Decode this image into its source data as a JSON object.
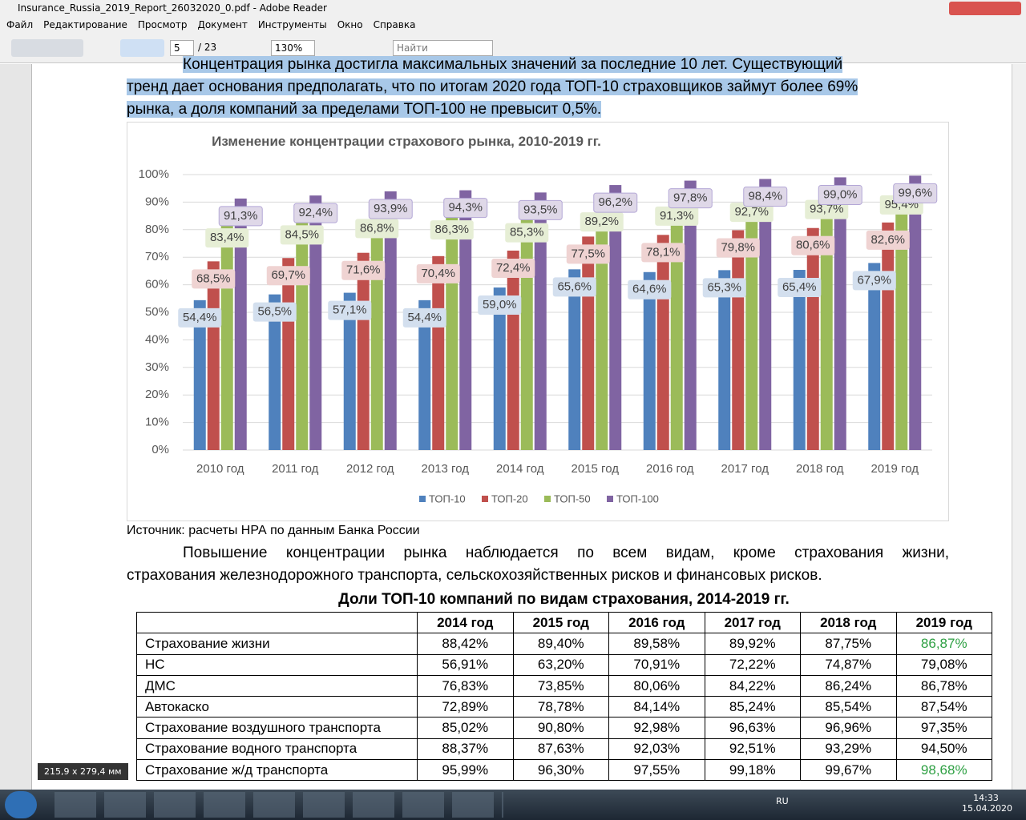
{
  "window": {
    "title": "Insurance_Russia_2019_Report_26032020_0.pdf - Adobe Reader"
  },
  "menu": [
    "Файл",
    "Редактирование",
    "Просмотр",
    "Документ",
    "Инструменты",
    "Окно",
    "Справка"
  ],
  "toolbar": {
    "page": "5",
    "pages": "/ 23",
    "zoom": "130%",
    "search": "Найти"
  },
  "document": {
    "lines": [
      "Концентрация рынка достигла максимальных значений за последние 10 лет. Существующий",
      "тренд дает основания предполагать, что по итогам 2020 года ТОП-10 страховщиков займут более 69%",
      "рынка, а доля компаний за пределами ТОП-100 не превысит 0,5%."
    ],
    "source": "Источник: расчеты НРА по данным Банка России",
    "paragraph": [
      "Повышение концентрации рынка наблюдается по всем видам, кроме страхования жизни,",
      "страхования железнодорожного транспорта, сельскохозяйственных рисков и финансовых рисков."
    ]
  },
  "chart_data": {
    "type": "bar",
    "title": "Изменение концентрации  страхового рынка, 2010-2019 гг.",
    "categories": [
      "2010 год",
      "2011 год",
      "2012 год",
      "2013 год",
      "2014 год",
      "2015 год",
      "2016 год",
      "2017 год",
      "2018 год",
      "2019 год"
    ],
    "series": [
      {
        "name": "ТОП-10",
        "color": "#4f81bd",
        "values": [
          54.4,
          56.5,
          57.1,
          54.4,
          59.0,
          65.6,
          64.6,
          65.3,
          65.4,
          67.9
        ],
        "value_labels": [
          "54,4%",
          "56,5%",
          "57,1%",
          "54,4%",
          "59,0%",
          "65,6%",
          "64,6%",
          "65,3%",
          "65,4%",
          "67,9%"
        ]
      },
      {
        "name": "ТОП-20",
        "color": "#c0504d",
        "values": [
          68.5,
          69.7,
          71.6,
          70.4,
          72.4,
          77.5,
          78.1,
          79.8,
          80.6,
          82.6
        ],
        "value_labels": [
          "68,5%",
          "69,7%",
          "71,6%",
          "70,4%",
          "72,4%",
          "77,5%",
          "78,1%",
          "79,8%",
          "80,6%",
          "82,6%"
        ]
      },
      {
        "name": "ТОП-50",
        "color": "#9bbb59",
        "values": [
          83.4,
          84.5,
          86.8,
          86.3,
          85.3,
          89.2,
          91.3,
          92.7,
          93.7,
          95.4
        ],
        "value_labels": [
          "83,4%",
          "84,5%",
          "86,8%",
          "86,3%",
          "85,3%",
          "89,2%",
          "91,3%",
          "92,7%",
          "93,7%",
          "95,4%"
        ]
      },
      {
        "name": "ТОП-100",
        "color": "#8064a2",
        "values": [
          91.3,
          92.4,
          93.9,
          94.3,
          93.5,
          96.2,
          97.8,
          98.4,
          99.0,
          99.6
        ],
        "value_labels": [
          "91,3%",
          "92,4%",
          "93,9%",
          "94,3%",
          "93,5%",
          "96,2%",
          "97,8%",
          "98,4%",
          "99,0%",
          "99,6%"
        ]
      }
    ],
    "ylim": [
      0,
      100
    ],
    "yticks": [
      {
        "value": 0,
        "label": "0%"
      },
      {
        "value": 10,
        "label": "10%"
      },
      {
        "value": 20,
        "label": "20%"
      },
      {
        "value": 30,
        "label": "30%"
      },
      {
        "value": 40,
        "label": "40%"
      },
      {
        "value": 50,
        "label": "50%"
      },
      {
        "value": 60,
        "label": "60%"
      },
      {
        "value": 70,
        "label": "70%"
      },
      {
        "value": 80,
        "label": "80%"
      },
      {
        "value": 90,
        "label": "90%"
      },
      {
        "value": 100,
        "label": "100%"
      }
    ],
    "grid": true,
    "legend": "bottom"
  },
  "table": {
    "title": "Доли ТОП-10 компаний по видам страхования, 2014-2019 гг.",
    "columns": [
      "2014 год",
      "2015 год",
      "2016 год",
      "2017 год",
      "2018 год",
      "2019 год"
    ],
    "rows": [
      [
        "Страхование жизни",
        "88,42%",
        "89,40%",
        "89,58%",
        "89,92%",
        "87,75%",
        "86,87%"
      ],
      [
        "НС",
        "56,91%",
        "63,20%",
        "70,91%",
        "72,22%",
        "74,87%",
        "79,08%"
      ],
      [
        "ДМС",
        "76,83%",
        "73,85%",
        "80,06%",
        "84,22%",
        "86,24%",
        "86,78%"
      ],
      [
        "Автокаско",
        "72,89%",
        "78,78%",
        "84,14%",
        "85,24%",
        "85,54%",
        "87,54%"
      ],
      [
        "Страхование воздушного транспорта",
        "85,02%",
        "90,80%",
        "92,98%",
        "96,63%",
        "96,96%",
        "97,35%"
      ],
      [
        "Страхование водного транспорта",
        "88,37%",
        "87,63%",
        "92,03%",
        "92,51%",
        "93,29%",
        "94,50%"
      ],
      [
        "Страхование ж/д транспорта",
        "95,99%",
        "96,30%",
        "97,55%",
        "99,18%",
        "99,67%",
        "98,68%"
      ]
    ]
  },
  "status": {
    "page_size": "215,9 x 279,4 мм"
  },
  "taskbar": {
    "language": "RU",
    "time": "14:33",
    "date": "15.04.2020"
  }
}
